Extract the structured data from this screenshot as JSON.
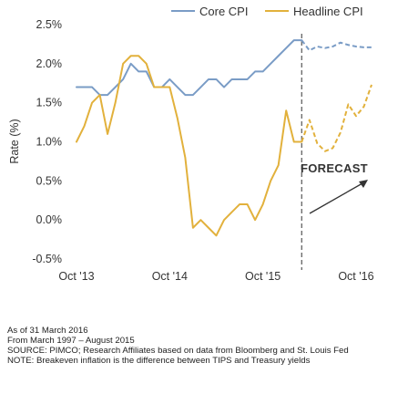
{
  "chart_data": {
    "type": "line",
    "title": "",
    "xlabel": "",
    "ylabel": "Rate (%)",
    "ylim": [
      -0.5,
      2.5
    ],
    "y_ticks": [
      2.5,
      2.0,
      1.5,
      1.0,
      0.5,
      0.0,
      -0.5
    ],
    "y_tick_labels": [
      "2.5%",
      "2.0%",
      "1.5%",
      "1.0%",
      "0.5%",
      "0.0%",
      "-0.5%"
    ],
    "x_tick_labels": [
      "Oct '13",
      "Oct '14",
      "Oct '15",
      "Oct '16"
    ],
    "x_tick_months": [
      0,
      12,
      24,
      36
    ],
    "x_range_months": [
      0,
      38
    ],
    "forecast_start_month": 29,
    "forecast_label": "FORECAST",
    "legend_position": "top",
    "series": [
      {
        "name": "Core CPI",
        "color": "#7a9cc6",
        "x_months": [
          0,
          1,
          2,
          3,
          4,
          5,
          6,
          7,
          8,
          9,
          10,
          11,
          12,
          13,
          14,
          15,
          16,
          17,
          18,
          19,
          20,
          21,
          22,
          23,
          24,
          25,
          26,
          27,
          28,
          29
        ],
        "values": [
          1.7,
          1.7,
          1.7,
          1.6,
          1.6,
          1.7,
          1.8,
          2.0,
          1.9,
          1.9,
          1.7,
          1.7,
          1.8,
          1.7,
          1.6,
          1.6,
          1.7,
          1.8,
          1.8,
          1.7,
          1.8,
          1.8,
          1.8,
          1.9,
          1.9,
          2.0,
          2.1,
          2.2,
          2.3,
          2.3
        ],
        "forecast_x_months": [
          29,
          30,
          31,
          32,
          33,
          34,
          35,
          36,
          37,
          38
        ],
        "forecast_values": [
          2.3,
          2.17,
          2.22,
          2.2,
          2.22,
          2.27,
          2.24,
          2.22,
          2.21,
          2.21
        ]
      },
      {
        "name": "Headline CPI",
        "color": "#e2b13c",
        "x_months": [
          0,
          1,
          2,
          3,
          4,
          5,
          6,
          7,
          8,
          9,
          10,
          11,
          12,
          13,
          14,
          15,
          16,
          17,
          18,
          19,
          20,
          21,
          22,
          23,
          24,
          25,
          26,
          27,
          28,
          29
        ],
        "values": [
          1.0,
          1.2,
          1.5,
          1.6,
          1.1,
          1.5,
          2.0,
          2.1,
          2.1,
          2.0,
          1.7,
          1.7,
          1.7,
          1.3,
          0.8,
          -0.1,
          0.0,
          -0.1,
          -0.2,
          0.0,
          0.1,
          0.2,
          0.2,
          0.0,
          0.2,
          0.5,
          0.7,
          1.4,
          1.0,
          1.0
        ],
        "forecast_x_months": [
          29,
          30,
          31,
          32,
          33,
          34,
          35,
          36,
          37,
          38
        ],
        "forecast_values": [
          1.0,
          1.28,
          0.98,
          0.88,
          0.92,
          1.12,
          1.48,
          1.33,
          1.45,
          1.73
        ]
      }
    ]
  },
  "notes": {
    "as_of": "As of 31 March 2016",
    "range": "From March 1997 – August 2015",
    "source": "SOURCE: PIMCO; Research Affiliates based on data from Bloomberg and  St. Louis Fed",
    "note": "NOTE: Breakeven inflation is the difference between TIPS and Treasury yields"
  }
}
